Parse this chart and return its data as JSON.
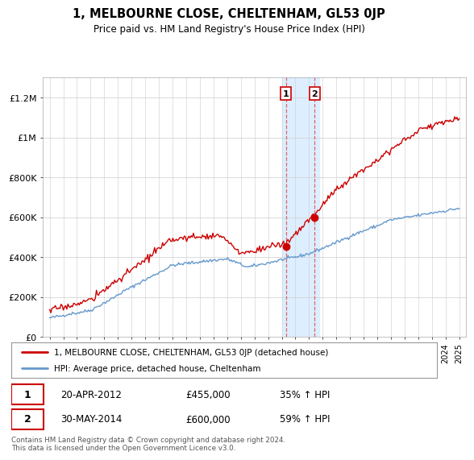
{
  "title": "1, MELBOURNE CLOSE, CHELTENHAM, GL53 0JP",
  "subtitle": "Price paid vs. HM Land Registry's House Price Index (HPI)",
  "legend_line1": "1, MELBOURNE CLOSE, CHELTENHAM, GL53 0JP (detached house)",
  "legend_line2": "HPI: Average price, detached house, Cheltenham",
  "annotation1_date": "20-APR-2012",
  "annotation1_price": "£455,000",
  "annotation1_hpi": "35% ↑ HPI",
  "annotation2_date": "30-MAY-2014",
  "annotation2_price": "£600,000",
  "annotation2_hpi": "59% ↑ HPI",
  "footnote": "Contains HM Land Registry data © Crown copyright and database right 2024.\nThis data is licensed under the Open Government Licence v3.0.",
  "ylim": [
    0,
    1300000
  ],
  "yticks": [
    0,
    200000,
    400000,
    600000,
    800000,
    1000000,
    1200000
  ],
  "ytick_labels": [
    "£0",
    "£200K",
    "£400K",
    "£600K",
    "£800K",
    "£1M",
    "£1.2M"
  ],
  "red_color": "#cc0000",
  "blue_color": "#6699cc",
  "highlight_color": "#ddeeff",
  "background_color": "#ffffff",
  "grid_color": "#cccccc",
  "sale1_x": 2012.3,
  "sale1_y": 455000,
  "sale2_x": 2014.42,
  "sale2_y": 600000,
  "highlight_x1": 2012.0,
  "highlight_x2": 2014.75,
  "xlim_left": 1994.5,
  "xlim_right": 2025.5
}
